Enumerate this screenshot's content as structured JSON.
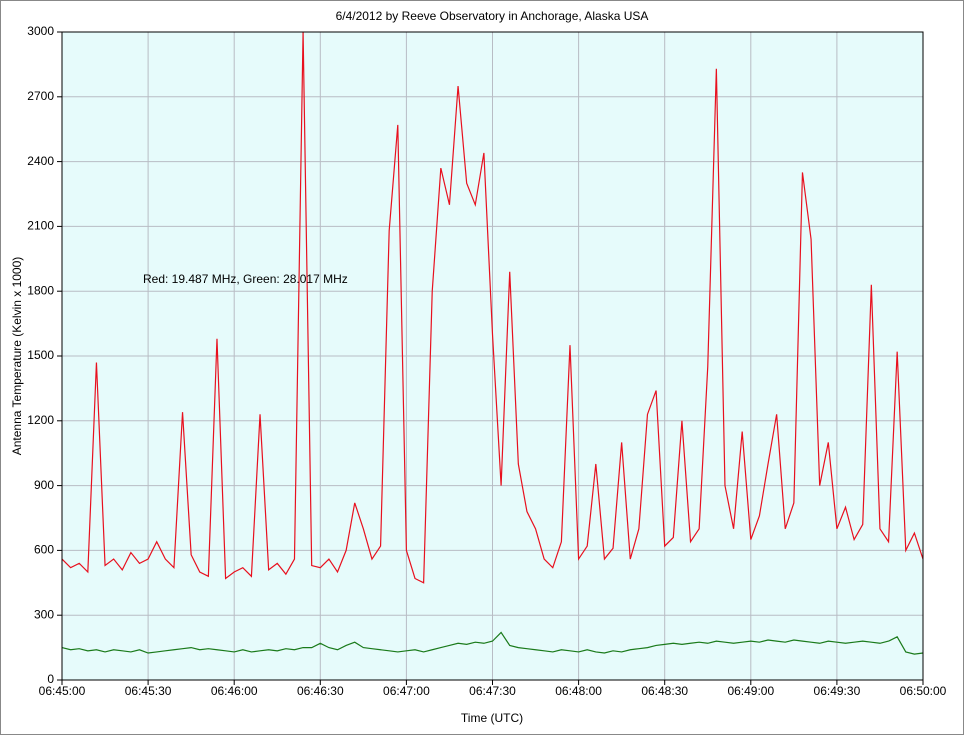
{
  "chart_data": {
    "type": "line",
    "title": "6/4/2012  by  Reeve Observatory  in  Anchorage, Alaska  USA",
    "x_label": "Time (UTC)",
    "y_label": "Antenna Temperature (Kelvin x 1000)",
    "annotation": "Red: 19.487 MHz, Green: 28.017 MHz",
    "x": [
      "06:45:00",
      "06:45:03",
      "06:45:06",
      "06:45:09",
      "06:45:12",
      "06:45:15",
      "06:45:18",
      "06:45:21",
      "06:45:24",
      "06:45:27",
      "06:45:30",
      "06:45:33",
      "06:45:36",
      "06:45:39",
      "06:45:42",
      "06:45:45",
      "06:45:48",
      "06:45:51",
      "06:45:54",
      "06:45:57",
      "06:46:00",
      "06:46:03",
      "06:46:06",
      "06:46:09",
      "06:46:12",
      "06:46:15",
      "06:46:18",
      "06:46:21",
      "06:46:24",
      "06:46:27",
      "06:46:30",
      "06:46:33",
      "06:46:36",
      "06:46:39",
      "06:46:42",
      "06:46:45",
      "06:46:48",
      "06:46:51",
      "06:46:54",
      "06:46:57",
      "06:47:00",
      "06:47:03",
      "06:47:06",
      "06:47:09",
      "06:47:12",
      "06:47:15",
      "06:47:18",
      "06:47:21",
      "06:47:24",
      "06:47:27",
      "06:47:30",
      "06:47:33",
      "06:47:36",
      "06:47:39",
      "06:47:42",
      "06:47:45",
      "06:47:48",
      "06:47:51",
      "06:47:54",
      "06:47:57",
      "06:48:00",
      "06:48:03",
      "06:48:06",
      "06:48:09",
      "06:48:12",
      "06:48:15",
      "06:48:18",
      "06:48:21",
      "06:48:24",
      "06:48:27",
      "06:48:30",
      "06:48:33",
      "06:48:36",
      "06:48:39",
      "06:48:42",
      "06:48:45",
      "06:48:48",
      "06:48:51",
      "06:48:54",
      "06:48:57",
      "06:49:00",
      "06:49:03",
      "06:49:06",
      "06:49:09",
      "06:49:12",
      "06:49:15",
      "06:49:18",
      "06:49:21",
      "06:49:24",
      "06:49:27",
      "06:49:30",
      "06:49:33",
      "06:49:36",
      "06:49:39",
      "06:49:42",
      "06:49:45",
      "06:49:48",
      "06:49:51",
      "06:49:54",
      "06:49:57",
      "06:50:00"
    ],
    "series": [
      {
        "color": "#e8101e",
        "values": [
          560,
          520,
          540,
          500,
          1470,
          530,
          560,
          510,
          590,
          540,
          560,
          640,
          560,
          520,
          1240,
          580,
          500,
          480,
          1580,
          470,
          500,
          520,
          480,
          1230,
          510,
          540,
          490,
          560,
          3000,
          530,
          520,
          560,
          500,
          600,
          820,
          700,
          560,
          620,
          2080,
          2570,
          600,
          470,
          450,
          1800,
          2370,
          2200,
          2750,
          2300,
          2200,
          2440,
          1600,
          900,
          1890,
          1000,
          780,
          700,
          560,
          520,
          640,
          1550,
          560,
          620,
          1000,
          560,
          610,
          1100,
          560,
          700,
          1230,
          1340,
          620,
          660,
          1200,
          640,
          700,
          1450,
          2830,
          900,
          700,
          1150,
          650,
          760,
          1000,
          1230,
          700,
          820,
          2350,
          2040,
          900,
          1100,
          700,
          800,
          650,
          720,
          1830,
          700,
          640,
          1520,
          600,
          680,
          560
        ]
      },
      {
        "color": "#1a7a1a",
        "values": [
          150,
          140,
          145,
          135,
          140,
          130,
          140,
          135,
          130,
          140,
          125,
          130,
          135,
          140,
          145,
          150,
          140,
          145,
          140,
          135,
          130,
          140,
          130,
          135,
          140,
          135,
          145,
          140,
          150,
          150,
          170,
          150,
          140,
          160,
          175,
          150,
          145,
          140,
          135,
          130,
          135,
          140,
          130,
          140,
          150,
          160,
          170,
          165,
          175,
          170,
          180,
          220,
          160,
          150,
          145,
          140,
          135,
          130,
          140,
          135,
          130,
          140,
          130,
          125,
          135,
          130,
          140,
          145,
          150,
          160,
          165,
          170,
          165,
          170,
          175,
          170,
          180,
          175,
          170,
          175,
          180,
          175,
          185,
          180,
          175,
          185,
          180,
          175,
          170,
          180,
          175,
          170,
          175,
          180,
          175,
          170,
          180,
          200,
          130,
          120,
          125
        ]
      }
    ],
    "xlim": [
      "06:45:00",
      "06:50:00"
    ],
    "xticks": [
      "06:45:00",
      "06:45:30",
      "06:46:00",
      "06:46:30",
      "06:47:00",
      "06:47:30",
      "06:48:00",
      "06:48:30",
      "06:49:00",
      "06:49:30",
      "06:50:00"
    ],
    "ylim": [
      0,
      3000
    ],
    "yticks": [
      0,
      300,
      600,
      900,
      1200,
      1500,
      1800,
      2100,
      2400,
      2700,
      3000
    ],
    "grid": true,
    "background": "#e6fbfb"
  }
}
